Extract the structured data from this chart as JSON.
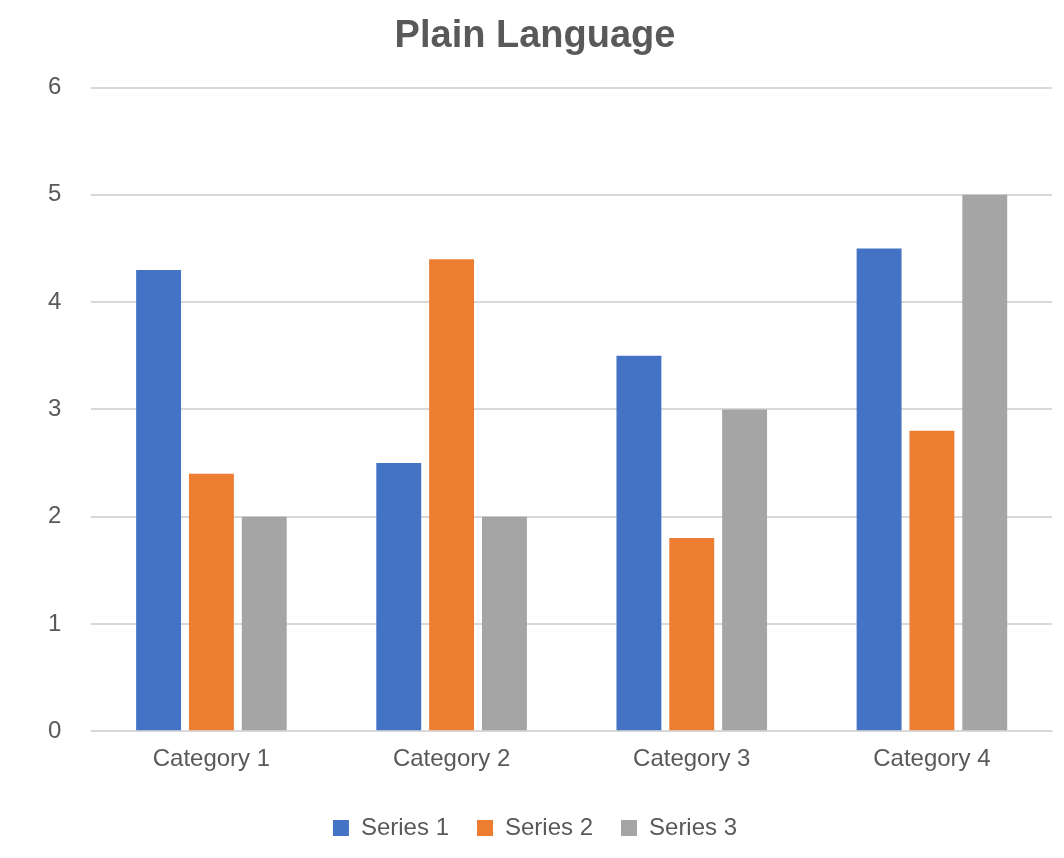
{
  "chart_data": {
    "type": "bar",
    "title": "Plain Language",
    "categories": [
      "Category 1",
      "Category 2",
      "Category 3",
      "Category 4"
    ],
    "series": [
      {
        "name": "Series 1",
        "color": "#4472c4",
        "values": [
          4.3,
          2.5,
          3.5,
          4.5
        ]
      },
      {
        "name": "Series 2",
        "color": "#ed7d31",
        "values": [
          2.4,
          4.4,
          1.8,
          2.8
        ]
      },
      {
        "name": "Series 3",
        "color": "#a5a5a5",
        "values": [
          2,
          2,
          3,
          5
        ]
      }
    ],
    "ylim": [
      0,
      6
    ],
    "yticks": [
      0,
      1,
      2,
      3,
      4,
      5,
      6
    ],
    "grid": "y",
    "legend": "bottom"
  }
}
